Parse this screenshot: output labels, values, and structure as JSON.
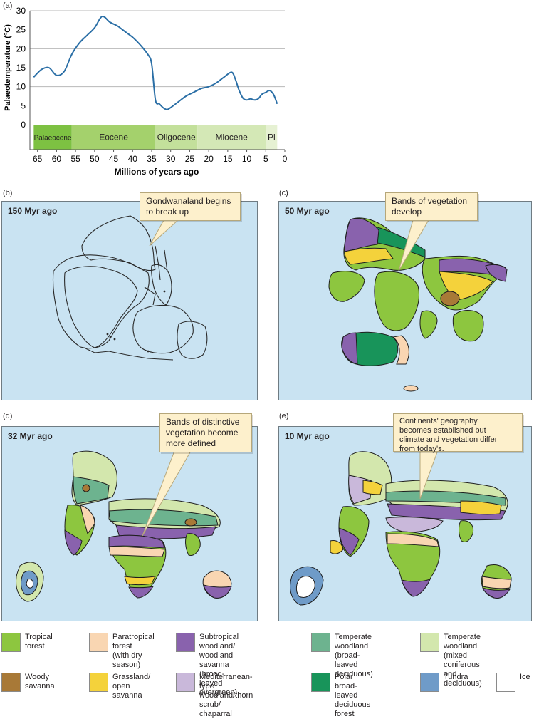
{
  "panels": {
    "a": "(a)",
    "b": "(b)",
    "c": "(c)",
    "d": "(d)",
    "e": "(e)"
  },
  "chart_data": {
    "type": "line",
    "ylabel": "Palaeotemperature (°C)",
    "xlabel": "Millions of years ago",
    "ylim": [
      0,
      30
    ],
    "xlim": [
      67,
      0
    ],
    "yticks": [
      "0",
      "5",
      "10",
      "15",
      "20",
      "25",
      "30"
    ],
    "xticks": [
      "65",
      "60",
      "55",
      "50",
      "45",
      "40",
      "35",
      "30",
      "25",
      "20",
      "15",
      "10",
      "5",
      "0"
    ],
    "grid": "horizontal at 10, 20, 30",
    "x": [
      66,
      64,
      62,
      60,
      58,
      56,
      54,
      52,
      50,
      48,
      46,
      44,
      42,
      40,
      38,
      36,
      35,
      34,
      33,
      32,
      31,
      30,
      28,
      26,
      24,
      22,
      20,
      18,
      16,
      14,
      13,
      12,
      11,
      10,
      9,
      8,
      7,
      6,
      5,
      4,
      3,
      2
    ],
    "values": [
      12.5,
      14.5,
      15,
      13,
      14,
      18.5,
      21.5,
      23.5,
      25.5,
      28.5,
      27,
      26,
      24.5,
      23,
      21,
      18.5,
      16,
      6.5,
      5.5,
      4.5,
      4,
      4.5,
      6,
      7.5,
      8.5,
      9.5,
      10,
      11,
      12.5,
      13.8,
      12,
      9,
      7,
      6.5,
      6.8,
      6.5,
      6.8,
      8,
      8.5,
      9,
      8,
      5.5
    ],
    "epochs": [
      {
        "name": "Palaeocene",
        "from": 66,
        "to": 56,
        "color": "#7dc142"
      },
      {
        "name": "Eocene",
        "from": 56,
        "to": 34,
        "color": "#a4d16c"
      },
      {
        "name": "Oligocene",
        "from": 34,
        "to": 23,
        "color": "#c3e09b"
      },
      {
        "name": "Miocene",
        "from": 23,
        "to": 5,
        "color": "#d4e8b6"
      },
      {
        "name": "Pl",
        "from": 5,
        "to": 2,
        "color": "#e6f1d3"
      }
    ]
  },
  "maps": [
    {
      "id": "b",
      "title": "150 Myr ago",
      "callout": "Gondwanaland begins\nto break up"
    },
    {
      "id": "c",
      "title": "50 Myr ago",
      "callout": "Bands of vegetation\ndevelop"
    },
    {
      "id": "d",
      "title": "32 Myr ago",
      "callout": "Bands of distinctive\nvegetation become\nmore defined"
    },
    {
      "id": "e",
      "title": "10 Myr ago",
      "callout": "Continents' geography\nbecomes established but\nclimate and vegetation differ\nfrom today's."
    }
  ],
  "colors": {
    "ocean": "#c9e3f2",
    "tropical": "#8dc63f",
    "paratropical": "#f9d6b2",
    "subtropical": "#8962ad",
    "temperate_broad": "#6db38f",
    "temperate_mixed": "#d3e7ad",
    "woody": "#a87937",
    "grassland": "#f4d23b",
    "mediterranean": "#c9b8da",
    "polar": "#18945a",
    "tundra": "#6f9bc8",
    "ice": "#ffffff"
  },
  "legend": [
    {
      "label": "Tropical\nforest",
      "color": "#8dc63f"
    },
    {
      "label": "Paratropical forest\n(with dry season)",
      "color": "#f9d6b2"
    },
    {
      "label": "Subtropical woodland/\nwoodland savanna\n(broad-leaved evergreen)",
      "color": "#8962ad"
    },
    {
      "label": "Temperate woodland\n(broad-leaved\ndeciduous)",
      "color": "#6db38f"
    },
    {
      "label": "Temperate woodland\n(mixed coniferous\nand deciduous)",
      "color": "#d3e7ad"
    },
    {
      "label": "Woody\nsavanna",
      "color": "#a87937"
    },
    {
      "label": "Grassland/\nopen savanna",
      "color": "#f4d23b"
    },
    {
      "label": "Mediterranean-type\nwoodland/thorn scrub/\nchaparral",
      "color": "#c9b8da"
    },
    {
      "label": "Polar broad-leaved\ndeciduous forest",
      "color": "#18945a"
    },
    {
      "label": "Tundra",
      "color": "#6f9bc8"
    },
    {
      "label": "Ice",
      "color": "#ffffff"
    }
  ]
}
